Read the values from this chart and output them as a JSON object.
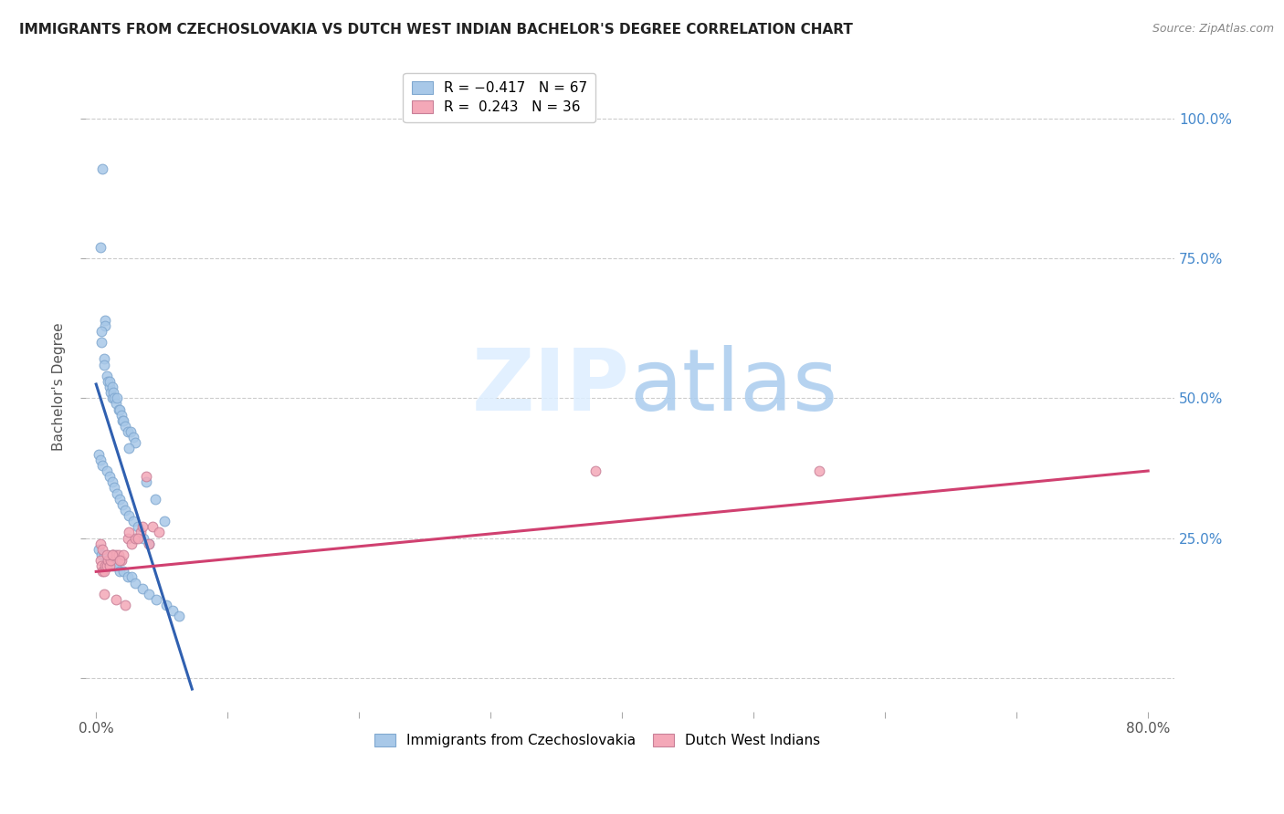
{
  "title": "IMMIGRANTS FROM CZECHOSLOVAKIA VS DUTCH WEST INDIAN BACHELOR'S DEGREE CORRELATION CHART",
  "source": "Source: ZipAtlas.com",
  "ylabel": "Bachelor's Degree",
  "y_tick_labels": [
    "",
    "25.0%",
    "50.0%",
    "75.0%",
    "100.0%"
  ],
  "y_tick_values": [
    0,
    0.25,
    0.5,
    0.75,
    1.0
  ],
  "x_tick_values": [
    0,
    0.1,
    0.2,
    0.3,
    0.4,
    0.5,
    0.6,
    0.7,
    0.8
  ],
  "xlim": [
    -0.008,
    0.82
  ],
  "ylim": [
    -0.06,
    1.1
  ],
  "legend_blue_r": "R = −0.417",
  "legend_blue_n": "N = 67",
  "legend_pink_r": "R =  0.243",
  "legend_pink_n": "N = 36",
  "blue_color": "#a8c8e8",
  "pink_color": "#f4a8b8",
  "blue_line_color": "#3060b0",
  "pink_line_color": "#d04070",
  "watermark_zip": "ZIP",
  "watermark_atlas": "atlas",
  "blue_scatter_x": [
    0.005,
    0.003,
    0.007,
    0.007,
    0.004,
    0.004,
    0.006,
    0.006,
    0.008,
    0.009,
    0.01,
    0.01,
    0.011,
    0.012,
    0.012,
    0.013,
    0.014,
    0.015,
    0.016,
    0.017,
    0.018,
    0.019,
    0.02,
    0.021,
    0.022,
    0.024,
    0.026,
    0.028,
    0.03,
    0.002,
    0.003,
    0.005,
    0.008,
    0.01,
    0.012,
    0.014,
    0.016,
    0.018,
    0.02,
    0.022,
    0.025,
    0.028,
    0.032,
    0.036,
    0.04,
    0.002,
    0.004,
    0.006,
    0.009,
    0.011,
    0.013,
    0.015,
    0.018,
    0.021,
    0.024,
    0.027,
    0.03,
    0.035,
    0.04,
    0.046,
    0.053,
    0.058,
    0.063,
    0.025,
    0.038,
    0.045,
    0.052
  ],
  "blue_scatter_y": [
    0.91,
    0.77,
    0.64,
    0.63,
    0.6,
    0.62,
    0.57,
    0.56,
    0.54,
    0.53,
    0.52,
    0.53,
    0.51,
    0.52,
    0.5,
    0.51,
    0.5,
    0.49,
    0.5,
    0.48,
    0.48,
    0.47,
    0.46,
    0.46,
    0.45,
    0.44,
    0.44,
    0.43,
    0.42,
    0.4,
    0.39,
    0.38,
    0.37,
    0.36,
    0.35,
    0.34,
    0.33,
    0.32,
    0.31,
    0.3,
    0.29,
    0.28,
    0.27,
    0.25,
    0.24,
    0.23,
    0.22,
    0.22,
    0.21,
    0.21,
    0.2,
    0.2,
    0.19,
    0.19,
    0.18,
    0.18,
    0.17,
    0.16,
    0.15,
    0.14,
    0.13,
    0.12,
    0.11,
    0.41,
    0.35,
    0.32,
    0.28
  ],
  "pink_scatter_x": [
    0.003,
    0.004,
    0.005,
    0.006,
    0.007,
    0.008,
    0.009,
    0.01,
    0.011,
    0.012,
    0.013,
    0.015,
    0.017,
    0.019,
    0.021,
    0.024,
    0.027,
    0.03,
    0.034,
    0.038,
    0.043,
    0.003,
    0.005,
    0.008,
    0.012,
    0.018,
    0.025,
    0.032,
    0.04,
    0.048,
    0.38,
    0.55,
    0.006,
    0.015,
    0.022,
    0.035
  ],
  "pink_scatter_y": [
    0.21,
    0.2,
    0.19,
    0.19,
    0.2,
    0.2,
    0.21,
    0.2,
    0.21,
    0.22,
    0.22,
    0.22,
    0.22,
    0.21,
    0.22,
    0.25,
    0.24,
    0.25,
    0.26,
    0.36,
    0.27,
    0.24,
    0.23,
    0.22,
    0.22,
    0.21,
    0.26,
    0.25,
    0.24,
    0.26,
    0.37,
    0.37,
    0.15,
    0.14,
    0.13,
    0.27
  ],
  "blue_line_x": [
    0.0,
    0.073
  ],
  "blue_line_y": [
    0.525,
    -0.02
  ],
  "pink_line_x": [
    0.0,
    0.8
  ],
  "pink_line_y": [
    0.19,
    0.37
  ]
}
